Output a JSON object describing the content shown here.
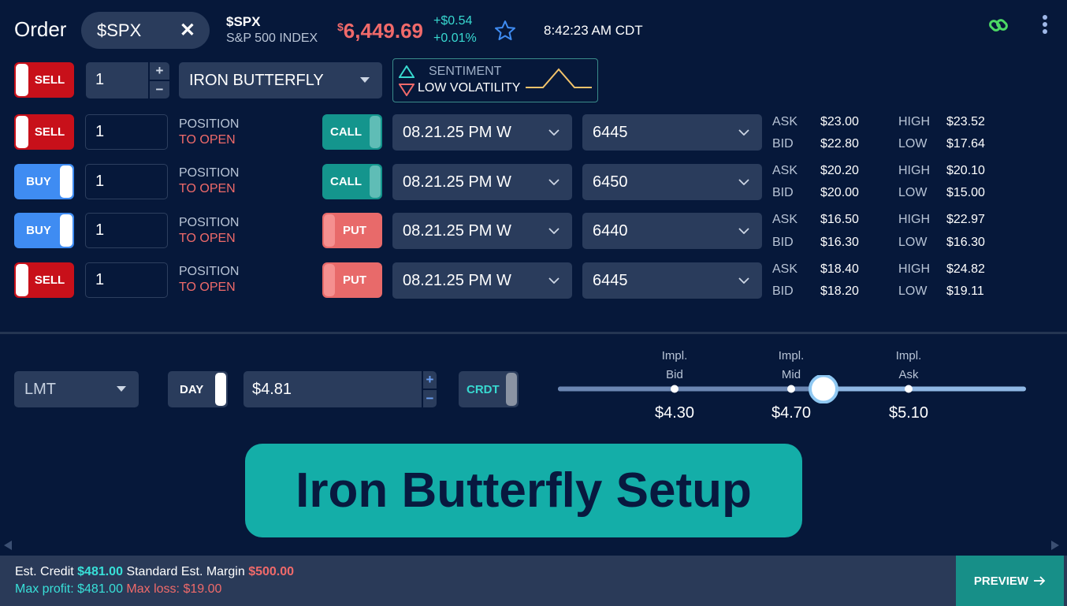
{
  "header": {
    "title": "Order",
    "symbol": "$SPX",
    "index_symbol": "$SPX",
    "index_name": "S&P 500 INDEX",
    "price_currency": "$",
    "price": "6,449.69",
    "change_abs": "+$0.54",
    "change_pct": "+0.01%",
    "time": "8:42:23 AM CDT"
  },
  "strategy": {
    "side": "SELL",
    "quantity": "1",
    "name": "IRON BUTTERFLY",
    "sentiment_label": "SENTIMENT",
    "sentiment_value": "LOW VOLATILITY"
  },
  "legs": [
    {
      "side": "SELL",
      "qty": "1",
      "pos1": "POSITION",
      "pos2": "TO OPEN",
      "type": "CALL",
      "expiry": "08.21.25 PM W",
      "strike": "6445",
      "ask_label": "ASK",
      "ask": "$23.00",
      "bid_label": "BID",
      "bid": "$22.80",
      "high_label": "HIGH",
      "high": "$23.52",
      "low_label": "LOW",
      "low": "$17.64"
    },
    {
      "side": "BUY",
      "qty": "1",
      "pos1": "POSITION",
      "pos2": "TO OPEN",
      "type": "CALL",
      "expiry": "08.21.25 PM W",
      "strike": "6450",
      "ask_label": "ASK",
      "ask": "$20.20",
      "bid_label": "BID",
      "bid": "$20.00",
      "high_label": "HIGH",
      "high": "$20.10",
      "low_label": "LOW",
      "low": "$15.00"
    },
    {
      "side": "BUY",
      "qty": "1",
      "pos1": "POSITION",
      "pos2": "TO OPEN",
      "type": "PUT",
      "expiry": "08.21.25 PM W",
      "strike": "6440",
      "ask_label": "ASK",
      "ask": "$16.50",
      "bid_label": "BID",
      "bid": "$16.30",
      "high_label": "HIGH",
      "high": "$22.97",
      "low_label": "LOW",
      "low": "$16.30"
    },
    {
      "side": "SELL",
      "qty": "1",
      "pos1": "POSITION",
      "pos2": "TO OPEN",
      "type": "PUT",
      "expiry": "08.21.25 PM W",
      "strike": "6445",
      "ask_label": "ASK",
      "ask": "$18.40",
      "bid_label": "BID",
      "bid": "$18.20",
      "high_label": "HIGH",
      "high": "$24.82",
      "low_label": "LOW",
      "low": "$19.11"
    }
  ],
  "order": {
    "order_type": "LMT",
    "duration": "DAY",
    "limit_price": "$4.81",
    "credit_debit": "CRDT",
    "impl_bid_label": "Impl.\nBid",
    "impl_mid_label": "Impl.\nMid",
    "impl_ask_label": "Impl.\nAsk",
    "impl_bid": "$4.30",
    "impl_mid": "$4.70",
    "impl_ask": "$5.10"
  },
  "banner": "Iron Butterfly Setup",
  "footer": {
    "est_credit_label": "Est. Credit",
    "est_credit": "$481.00",
    "margin_label": "Standard Est. Margin",
    "margin": "$500.00",
    "max_profit": "Max profit: $481.00",
    "max_loss": "Max loss: $19.00",
    "preview": "PREVIEW"
  },
  "colors": {
    "background": "#06183a",
    "sell": "#c8101a",
    "buy": "#3f8cf2",
    "call": "#14958d",
    "put": "#e86a6a",
    "accent": "#14aea8"
  }
}
